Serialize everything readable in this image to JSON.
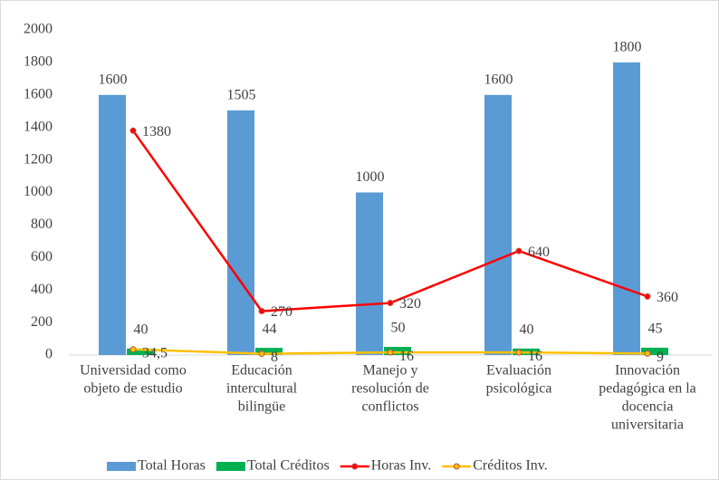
{
  "chart_data": {
    "type": "bar",
    "categories": [
      [
        "Universidad como",
        "objeto de estudio"
      ],
      [
        "Educación",
        "intercultural",
        "bilingüe"
      ],
      [
        "Manejo y",
        "resolución de",
        "conflictos"
      ],
      [
        "Evaluación",
        "psicológica"
      ],
      [
        "Innovación",
        "pedagógica en la",
        "docencia",
        "universitaria"
      ]
    ],
    "series": [
      {
        "name": "Total Horas",
        "type": "bar",
        "color": "#5b9bd5",
        "values": [
          1600,
          1505,
          1000,
          1600,
          1800
        ]
      },
      {
        "name": "Total Créditos",
        "type": "bar",
        "color": "#00b050",
        "values": [
          40,
          44,
          50,
          40,
          45
        ]
      },
      {
        "name": "Horas Inv.",
        "type": "line",
        "color": "#ff0000",
        "values": [
          1380,
          270,
          320,
          640,
          360
        ]
      },
      {
        "name": "Créditos Inv.",
        "type": "line",
        "color": "#ffc000",
        "values": [
          34.5,
          8,
          16,
          16,
          9
        ],
        "value_labels": [
          "34,5",
          "8",
          "16",
          "16",
          "9"
        ]
      }
    ],
    "ylim": [
      0,
      2000
    ],
    "yticks": [
      0,
      200,
      400,
      600,
      800,
      1000,
      1200,
      1400,
      1600,
      1800,
      2000
    ],
    "legend": "bottom"
  }
}
